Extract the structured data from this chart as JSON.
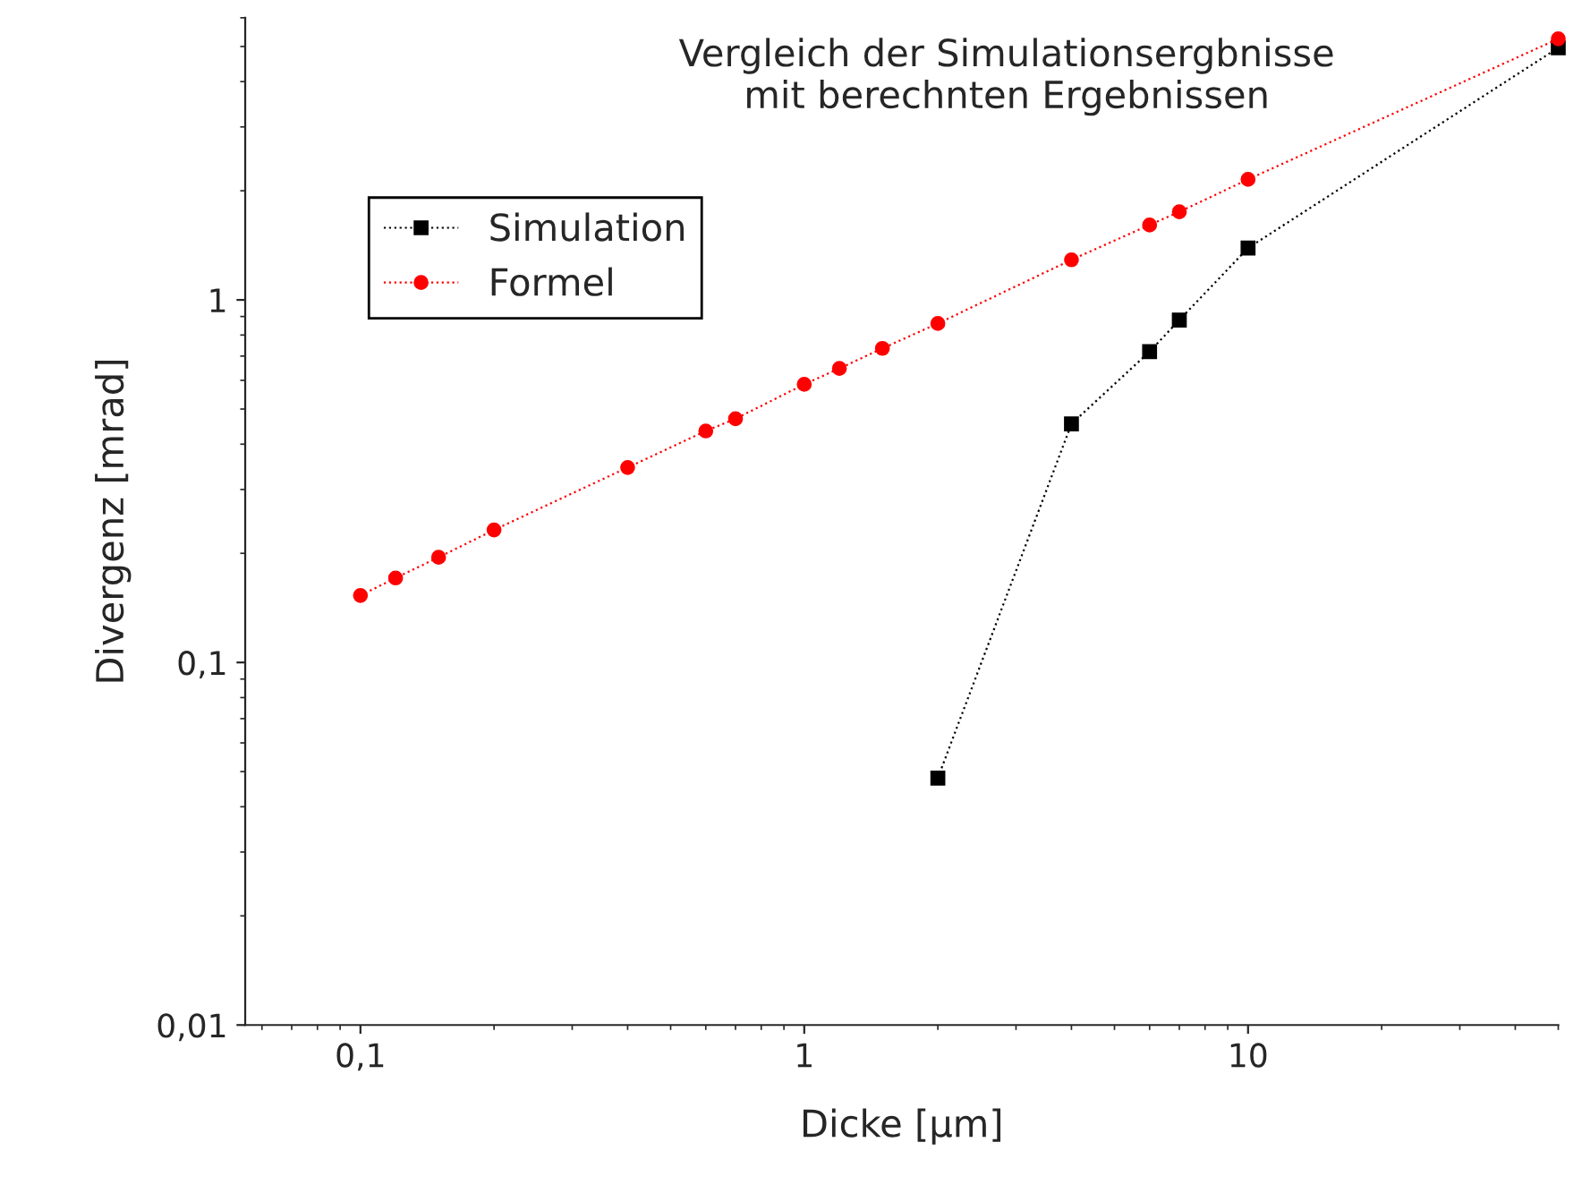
{
  "chart_data": {
    "type": "line",
    "title": "Vergleich der Simulationsergbnisse\nmit berechnten Ergebnissen",
    "xlabel": "Dicke [µm]",
    "ylabel": "Divergenz [mrad]",
    "log": "xy",
    "grid": false,
    "legend": "top left",
    "line_style": "dotted",
    "xlim": [
      0.055,
      50
    ],
    "ylim": [
      0.01,
      6
    ],
    "xticks": [
      {
        "value": 0.1,
        "label": "0,1"
      },
      {
        "value": 1,
        "label": "1"
      },
      {
        "value": 10,
        "label": "10"
      }
    ],
    "yticks": [
      {
        "value": 0.01,
        "label": "0,01"
      },
      {
        "value": 0.1,
        "label": "0,1"
      },
      {
        "value": 1,
        "label": "1"
      }
    ],
    "series": [
      {
        "name": "Simulation",
        "color": "#000000",
        "marker": "square",
        "x": [
          2,
          4,
          6,
          7,
          10,
          50
        ],
        "values": [
          0.048,
          0.455,
          0.72,
          0.88,
          1.39,
          4.96
        ]
      },
      {
        "name": "Formel",
        "color": "#ff0000",
        "marker": "circle",
        "x": [
          0.1,
          0.12,
          0.15,
          0.2,
          0.4,
          0.6,
          0.7,
          1,
          1.2,
          1.5,
          2,
          4,
          6,
          7,
          10,
          50
        ],
        "values": [
          0.153,
          0.171,
          0.195,
          0.232,
          0.345,
          0.435,
          0.47,
          0.585,
          0.647,
          0.735,
          0.861,
          1.29,
          1.61,
          1.75,
          2.15,
          5.25
        ]
      }
    ]
  }
}
